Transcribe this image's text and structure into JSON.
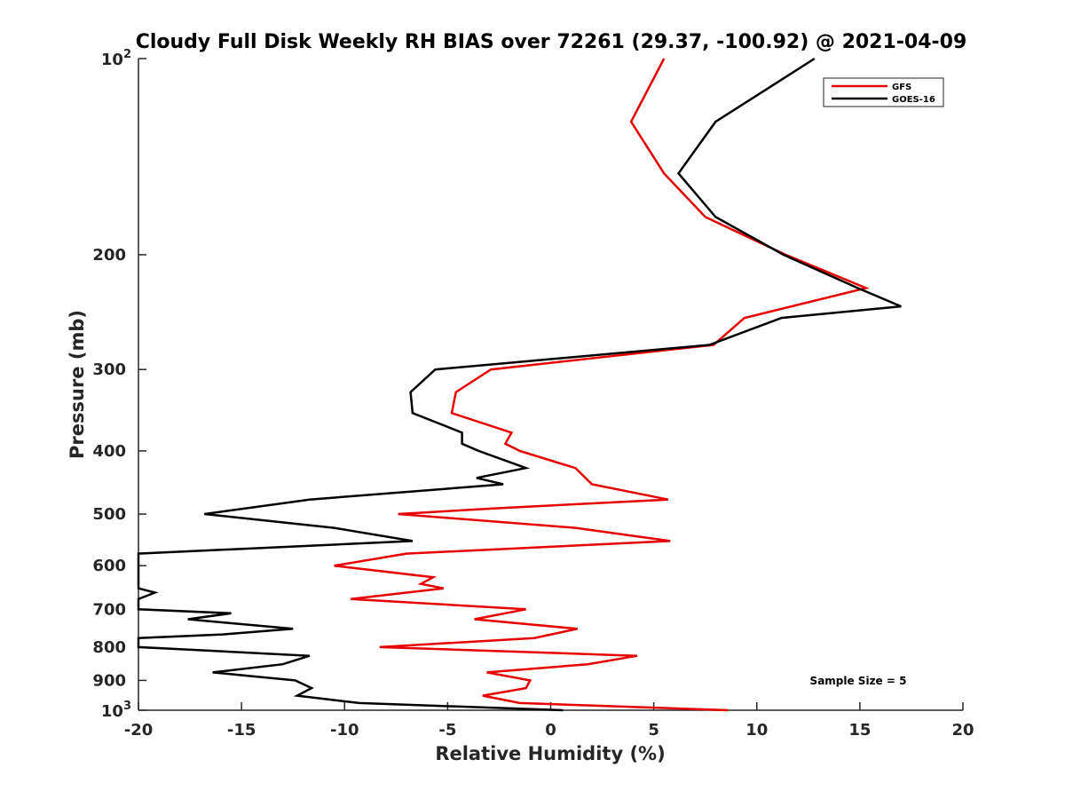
{
  "chart_data": {
    "type": "line",
    "title": "Cloudy Full Disk Weekly RH BIAS over 72261 (29.37, -100.92) @ 2021-04-09",
    "xlabel": "Relative Humidity (%)",
    "ylabel": "Pressure (mb)",
    "xlim": [
      -20,
      20
    ],
    "ylim": [
      100,
      1000
    ],
    "y_scale": "log",
    "y_reversed": true,
    "x_ticks": [
      -20,
      -15,
      -10,
      -5,
      0,
      5,
      10,
      15,
      20
    ],
    "y_ticks": [
      {
        "value": 100,
        "base": "10",
        "exp": "2"
      },
      {
        "value": 200,
        "label": "200"
      },
      {
        "value": 300,
        "label": "300"
      },
      {
        "value": 400,
        "label": "400"
      },
      {
        "value": 500,
        "label": "500"
      },
      {
        "value": 600,
        "label": "600"
      },
      {
        "value": 700,
        "label": "700"
      },
      {
        "value": 800,
        "label": "800"
      },
      {
        "value": 900,
        "label": "900"
      },
      {
        "value": 1000,
        "base": "10",
        "exp": "3"
      }
    ],
    "grid": false,
    "legend_position": "top-right",
    "annotation": "Sample Size = 5",
    "series": [
      {
        "name": "GFS",
        "color": "#e60000",
        "points": [
          [
            5.5,
            100
          ],
          [
            3.9,
            125
          ],
          [
            5.5,
            150
          ],
          [
            7.5,
            175
          ],
          [
            11.4,
            200
          ],
          [
            15.3,
            225
          ],
          [
            9.4,
            250
          ],
          [
            7.9,
            275
          ],
          [
            -2.9,
            300
          ],
          [
            -4.6,
            325
          ],
          [
            -4.8,
            350
          ],
          [
            -1.9,
            375
          ],
          [
            -2.2,
            390
          ],
          [
            -1.5,
            400
          ],
          [
            1.2,
            425
          ],
          [
            2.0,
            450
          ],
          [
            5.7,
            475
          ],
          [
            -2.7,
            490
          ],
          [
            -7.4,
            500
          ],
          [
            1.2,
            525
          ],
          [
            5.8,
            550
          ],
          [
            -7.0,
            575
          ],
          [
            -10.5,
            600
          ],
          [
            -5.7,
            625
          ],
          [
            -6.3,
            640
          ],
          [
            -5.2,
            650
          ],
          [
            -9.7,
            675
          ],
          [
            -1.2,
            700
          ],
          [
            -3.7,
            725
          ],
          [
            1.3,
            750
          ],
          [
            -0.8,
            775
          ],
          [
            -8.3,
            800
          ],
          [
            4.2,
            825
          ],
          [
            1.8,
            850
          ],
          [
            -3.1,
            875
          ],
          [
            -1.0,
            900
          ],
          [
            -1.2,
            925
          ],
          [
            -3.3,
            950
          ],
          [
            -1.5,
            975
          ],
          [
            8.6,
            1000
          ]
        ]
      },
      {
        "name": "GOES-16",
        "color": "#000000",
        "points": [
          [
            12.8,
            100
          ],
          [
            8.0,
            125
          ],
          [
            6.2,
            150
          ],
          [
            8.0,
            175
          ],
          [
            11.3,
            200
          ],
          [
            14.9,
            225
          ],
          [
            17.0,
            240
          ],
          [
            11.2,
            250
          ],
          [
            7.7,
            275
          ],
          [
            -5.6,
            300
          ],
          [
            -6.8,
            325
          ],
          [
            -6.7,
            350
          ],
          [
            -4.3,
            375
          ],
          [
            -4.3,
            390
          ],
          [
            -3.5,
            400
          ],
          [
            -1.2,
            425
          ],
          [
            -3.6,
            440
          ],
          [
            -2.3,
            450
          ],
          [
            -11.7,
            475
          ],
          [
            -16.8,
            500
          ],
          [
            -10.5,
            525
          ],
          [
            -6.7,
            550
          ],
          [
            -20.0,
            575
          ],
          [
            -20.0,
            650
          ],
          [
            -19.2,
            660
          ],
          [
            -20.0,
            675
          ],
          [
            -20.0,
            700
          ],
          [
            -15.5,
            710
          ],
          [
            -17.6,
            725
          ],
          [
            -12.5,
            750
          ],
          [
            -15.9,
            765
          ],
          [
            -20.0,
            775
          ],
          [
            -20.0,
            800
          ],
          [
            -11.7,
            825
          ],
          [
            -13.0,
            850
          ],
          [
            -16.4,
            875
          ],
          [
            -12.4,
            900
          ],
          [
            -11.6,
            925
          ],
          [
            -12.3,
            950
          ],
          [
            -9.3,
            975
          ],
          [
            0.6,
            1000
          ]
        ]
      }
    ]
  }
}
